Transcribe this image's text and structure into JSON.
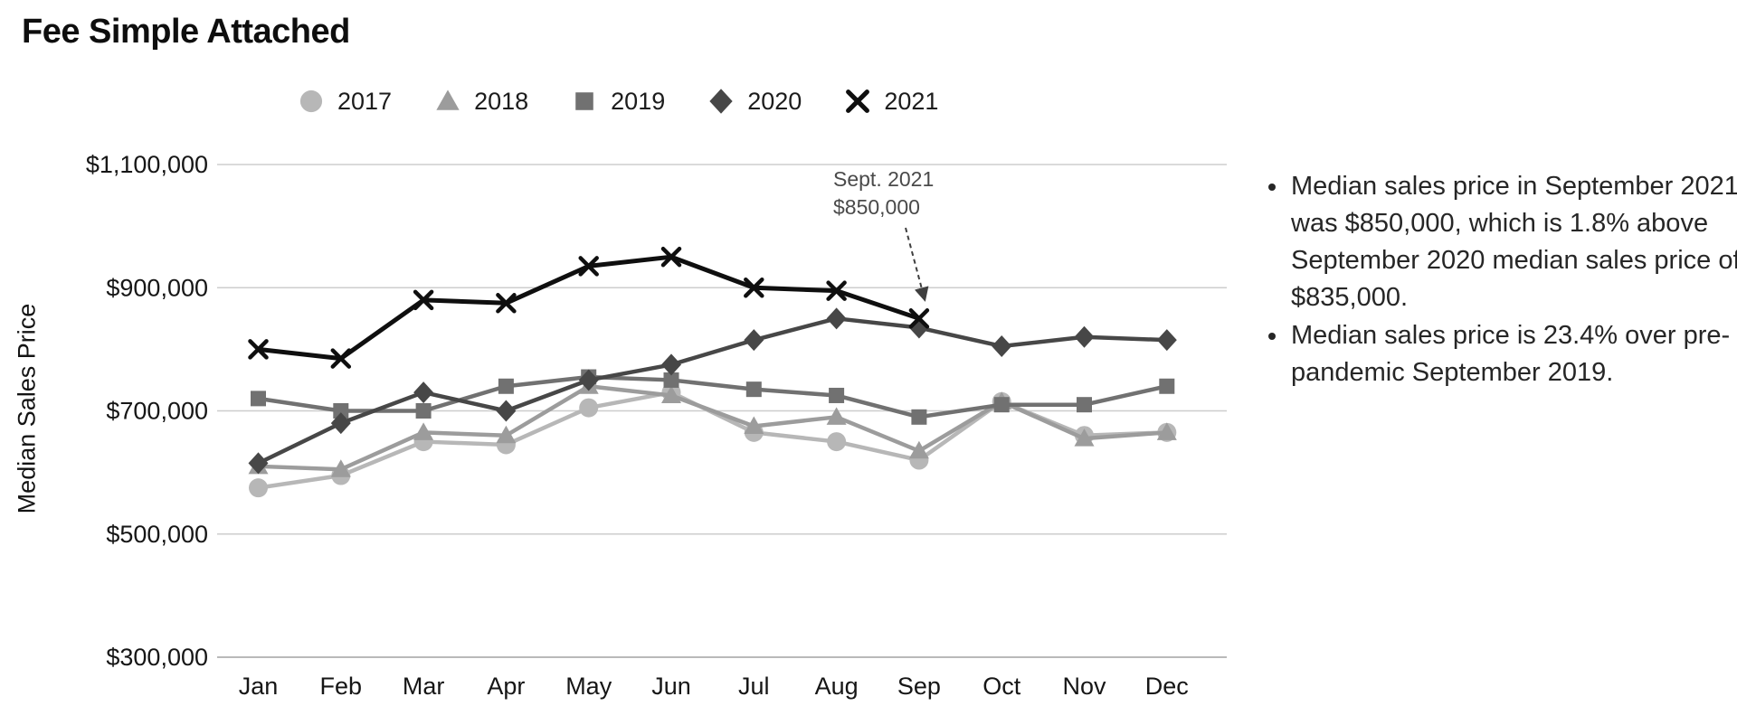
{
  "title": "Fee Simple Attached",
  "y_axis_title": "Median Sales Price",
  "annotation": {
    "line1": "Sept. 2021",
    "line2": "$850,000"
  },
  "bullets": [
    "Median sales price in September 2021 was $850,000, which is 1.8% above September 2020 median sales price of $835,000.",
    "Median sales price is 23.4% over pre-pandemic September 2019."
  ],
  "colors": {
    "grid": "#cdcdcd",
    "axis_text": "#161616",
    "annotation_text": "#4a4a4a",
    "arrow": "#3f3f3f"
  },
  "chart_data": {
    "type": "line",
    "title": "Fee Simple Attached",
    "xlabel": "",
    "ylabel": "Median Sales Price",
    "categories": [
      "Jan",
      "Feb",
      "Mar",
      "Apr",
      "May",
      "Jun",
      "Jul",
      "Aug",
      "Sep",
      "Oct",
      "Nov",
      "Dec"
    ],
    "y_ticks": [
      "$300,000",
      "$500,000",
      "$700,000",
      "$900,000",
      "$1,100,000"
    ],
    "y_tick_values": [
      300000,
      500000,
      700000,
      900000,
      1100000
    ],
    "ylim": [
      300000,
      1100000
    ],
    "grid": true,
    "legend_position": "top",
    "series": [
      {
        "name": "2017",
        "marker": "circle",
        "color": "#b7b7b7",
        "values": [
          575000,
          595000,
          650000,
          645000,
          705000,
          730000,
          665000,
          650000,
          620000,
          715000,
          660000,
          665000
        ]
      },
      {
        "name": "2018",
        "marker": "triangle",
        "color": "#9c9c9c",
        "values": [
          610000,
          605000,
          665000,
          660000,
          740000,
          725000,
          675000,
          690000,
          635000,
          715000,
          655000,
          665000
        ]
      },
      {
        "name": "2019",
        "marker": "square",
        "color": "#717171",
        "values": [
          720000,
          700000,
          700000,
          740000,
          755000,
          750000,
          735000,
          725000,
          690000,
          710000,
          710000,
          740000
        ]
      },
      {
        "name": "2020",
        "marker": "diamond",
        "color": "#474747",
        "values": [
          615000,
          680000,
          730000,
          700000,
          750000,
          775000,
          815000,
          850000,
          835000,
          805000,
          820000,
          815000
        ]
      },
      {
        "name": "2021",
        "marker": "x",
        "color": "#0f0f0f",
        "values": [
          800000,
          785000,
          880000,
          875000,
          935000,
          950000,
          900000,
          895000,
          850000,
          null,
          null,
          null
        ]
      }
    ],
    "annotation": {
      "text": "Sept. 2021 $850,000",
      "series": "2021",
      "category": "Sep",
      "value": 850000
    }
  }
}
